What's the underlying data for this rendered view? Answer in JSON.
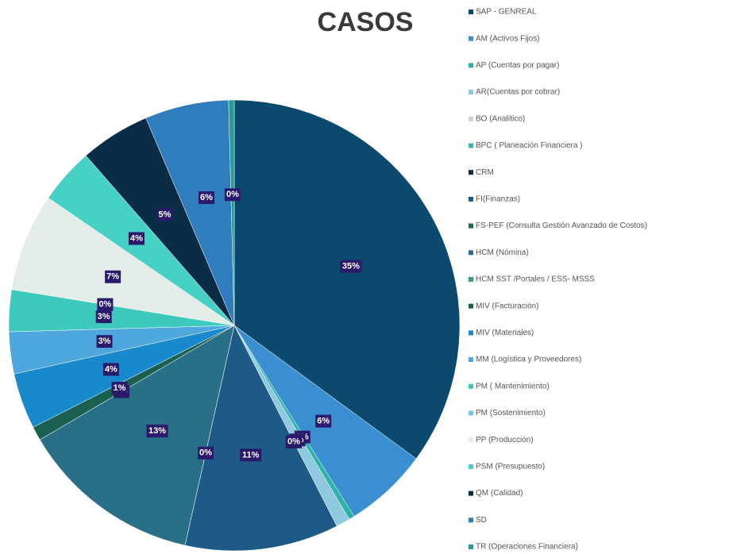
{
  "chart_data": {
    "type": "pie",
    "title": "CASOS",
    "categories": [
      "SAP - GENREAL",
      "AM (Activos Fijos)",
      "AP (Cuentas por pagar)",
      "AR(Cuentas por cobrar)",
      "BO (Analítico)",
      "BPC ( Planeación Financiera )",
      "CRM",
      "FI(Finanzas)",
      "FS-PEF (Consulta Gestión Avanzado de Costos)",
      "HCM (Nómina)",
      "HCM SST /Portales / ESS- MSSS",
      "MIV (Facturación)",
      "MIV (Materiales)",
      "MM (Logística y Proveedores)",
      "PM ( Mantenimiento)",
      "PM (Sostenimiento)",
      "PP (Producción)",
      "PSM (Presupuesto)",
      "QM (Calidad)",
      "SD",
      "TR (Operaciones Financiera)"
    ],
    "values": [
      35,
      6,
      0.4,
      1,
      0,
      0,
      0,
      11,
      0,
      13,
      0,
      1,
      4,
      3,
      3,
      0,
      7,
      4,
      5,
      6,
      0.4
    ],
    "value_labels": [
      "35%",
      "6%",
      "0%",
      "1%",
      "0%",
      "0%",
      "0%",
      "11%",
      "0%",
      "13%",
      "0%",
      "1%",
      "4%",
      "3%",
      "3%",
      "0%",
      "7%",
      "4%",
      "5%",
      "6%",
      "0%"
    ],
    "colors": [
      "#0b4a6e",
      "#3a8fd0",
      "#2bb3a8",
      "#8fc9e0",
      "#c8d4dc",
      "#36b8b0",
      "#0c2a44",
      "#1d5b86",
      "#1f6e52",
      "#2a6f88",
      "#2ba07e",
      "#1a6050",
      "#1889cc",
      "#4ea8dd",
      "#3ec9bd",
      "#7cc4e0",
      "#e4ece8",
      "#47d1c5",
      "#0a2c46",
      "#2f7dbc",
      "#2a9a96"
    ]
  }
}
